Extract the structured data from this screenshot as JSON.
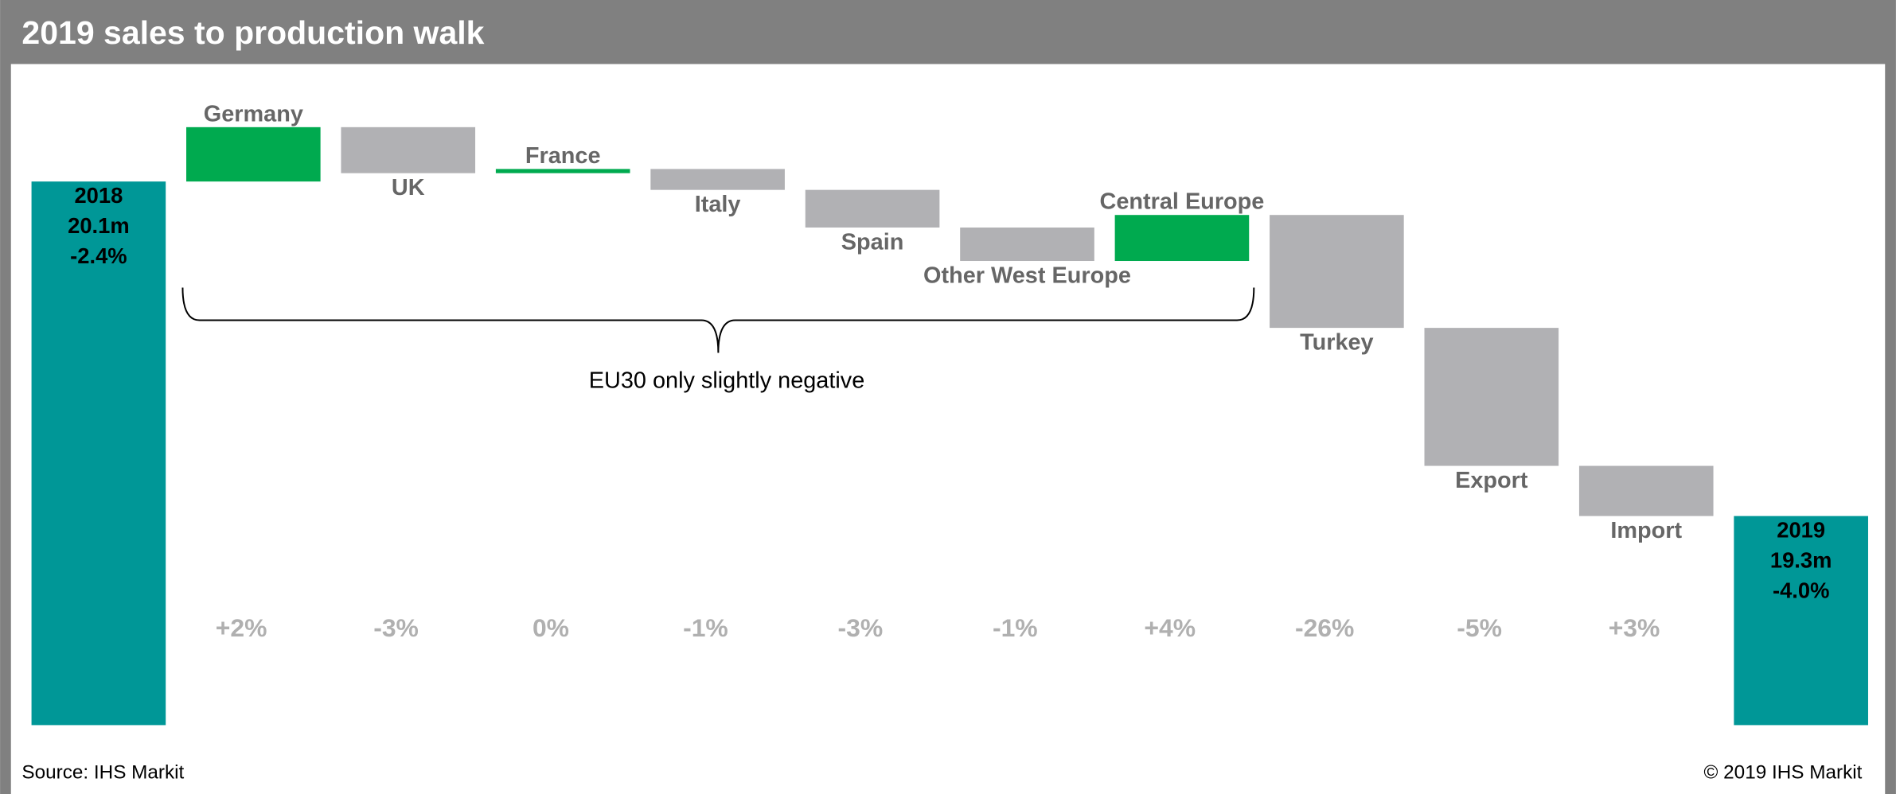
{
  "chart_data": {
    "type": "waterfall",
    "title": "2019 sales to production walk",
    "ylim": [
      18.8,
      20.4
    ],
    "start": {
      "name": "2018",
      "value": 20.1,
      "value_label": "20.1m",
      "change_label": "-2.4%",
      "color": "#009797"
    },
    "end": {
      "name": "2019",
      "value": 19.3,
      "value_label": "19.3m",
      "change_label": "-4.0%",
      "color": "#009797"
    },
    "steps": {
      "categories": [
        "Germany",
        "UK",
        "France",
        "Italy",
        "Spain",
        "Other West Europe",
        "Central Europe",
        "Turkey",
        "Export",
        "Import"
      ],
      "values": [
        0.13,
        -0.11,
        0.01,
        -0.05,
        -0.09,
        -0.08,
        0.11,
        -0.27,
        -0.33,
        -0.12
      ],
      "colors": [
        "#00aa4f",
        "#b1b1b4",
        "#00aa4f",
        "#b1b1b4",
        "#b1b1b4",
        "#b1b1b4",
        "#00aa4f",
        "#b1b1b4",
        "#b1b1b4",
        "#b1b1b4"
      ],
      "change_labels": [
        "+2%",
        "-3%",
        "0%",
        "-1%",
        "-3%",
        "-1%",
        "+4%",
        "-26%",
        "-5%",
        "+3%"
      ]
    },
    "annotation": "EU30 only slightly negative",
    "source": "Source: IHS Markit",
    "copyright": "© 2019 IHS Markit"
  }
}
